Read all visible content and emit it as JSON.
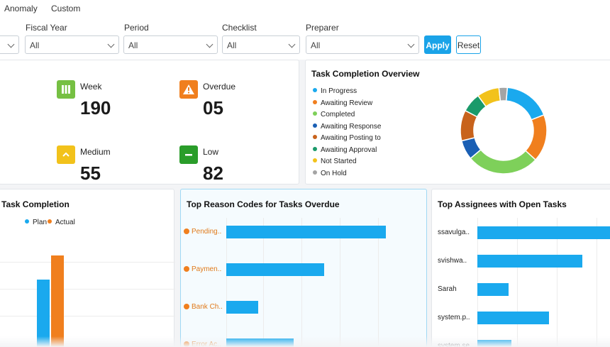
{
  "nav": {
    "tabs": [
      "Anomaly",
      "Custom"
    ]
  },
  "filters": {
    "fiscal_year": {
      "label": "Fiscal Year",
      "value": "All"
    },
    "period": {
      "label": "Period",
      "value": "All"
    },
    "checklist": {
      "label": "Checklist",
      "value": "All"
    },
    "preparer": {
      "label": "Preparer",
      "value": "All"
    },
    "apply_label": "Apply",
    "reset_label": "Reset"
  },
  "stats": [
    {
      "label": "Week",
      "value": "190",
      "color": "#76c043",
      "icon": "calendar-week-icon"
    },
    {
      "label": "Overdue",
      "value": "05",
      "color": "#f07f1e",
      "icon": "warning-icon"
    },
    {
      "label": "Medium",
      "value": "55",
      "color": "#f2c21b",
      "icon": "chevron-up-icon"
    },
    {
      "label": "Low",
      "value": "82",
      "color": "#2a9d2a",
      "icon": "minus-icon"
    }
  ],
  "overview": {
    "title": "Task Completion Overview",
    "legend": [
      {
        "label": "In Progress",
        "color": "#1aa9ee"
      },
      {
        "label": "Awaiting Review",
        "color": "#f07f1e"
      },
      {
        "label": "Completed",
        "color": "#7ed05a"
      },
      {
        "label": "Awaiting Response",
        "color": "#1a5fb4"
      },
      {
        "label": "Awaiting Posting to",
        "color": "#c8631c"
      },
      {
        "label": "Awaiting Approval",
        "color": "#1a9a6a"
      },
      {
        "label": "Not Started",
        "color": "#f2c21b"
      },
      {
        "label": "On Hold",
        "color": "#a4a4a4"
      }
    ]
  },
  "task_completion": {
    "title": "Task Completion",
    "legend": [
      {
        "label": "Plan",
        "color": "#1aa9ee"
      },
      {
        "label": "Actual",
        "color": "#f07f1e"
      }
    ]
  },
  "reason_codes": {
    "title": "Top Reason Codes for Tasks Overdue",
    "items": [
      {
        "label": "Pending..",
        "value": 0.9
      },
      {
        "label": "Paymen..",
        "value": 0.55
      },
      {
        "label": "Bank Ch..",
        "value": 0.18
      },
      {
        "label": "Error Ac..",
        "value": 0.38
      }
    ]
  },
  "assignees": {
    "title": "Top Assignees with Open Tasks",
    "items": [
      {
        "label": "ssavulga..",
        "value": 1.0
      },
      {
        "label": "svishwa..",
        "value": 0.78
      },
      {
        "label": "Sarah",
        "value": 0.23
      },
      {
        "label": "system.p..",
        "value": 0.53
      },
      {
        "label": "system.se..",
        "value": 0.25
      }
    ]
  },
  "chart_data": [
    {
      "type": "pie",
      "title": "Task Completion Overview",
      "categories": [
        "In Progress",
        "Awaiting Review",
        "Completed",
        "Awaiting Response",
        "Awaiting Posting to",
        "Awaiting Approval",
        "Not Started",
        "On Hold"
      ],
      "values": [
        17,
        17,
        26,
        7,
        11,
        7,
        8,
        3
      ]
    }
  ]
}
